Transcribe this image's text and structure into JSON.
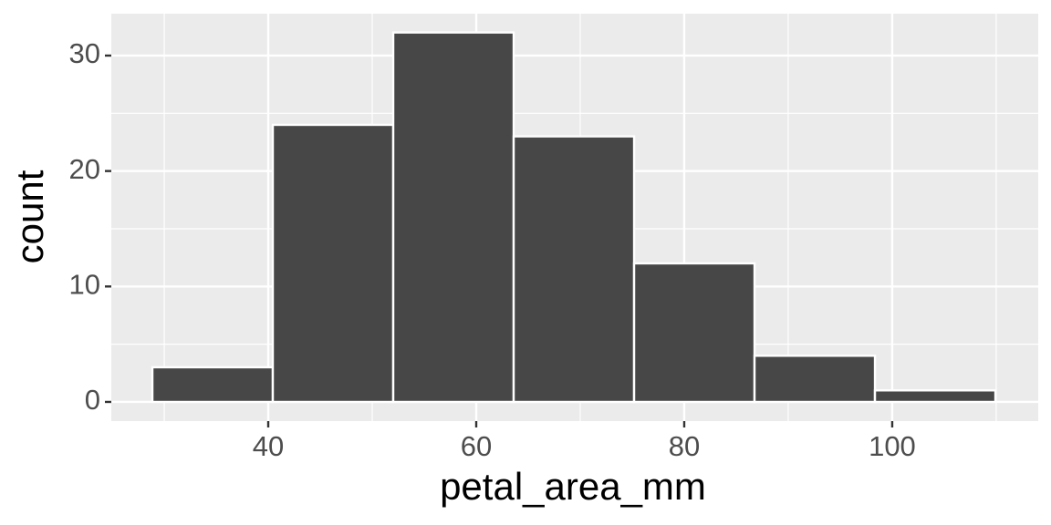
{
  "chart_data": {
    "type": "histogram",
    "x_label": "petal_area_mm",
    "y_label": "count",
    "bins": [
      28.86,
      40.44,
      52.02,
      63.6,
      75.18,
      86.76,
      98.34,
      109.92
    ],
    "values": [
      3,
      24,
      32,
      23,
      12,
      4,
      1
    ],
    "color": "#474747",
    "xlim": [
      24.91,
      114.04
    ],
    "ylim": [
      -1.66,
      33.63
    ],
    "xticks": [
      40,
      60,
      80,
      100
    ],
    "yticks": [
      0,
      10,
      20,
      30
    ],
    "xminor": [
      30,
      50,
      70,
      90,
      110
    ],
    "yminor": [
      5,
      15,
      25
    ],
    "grid": true
  }
}
